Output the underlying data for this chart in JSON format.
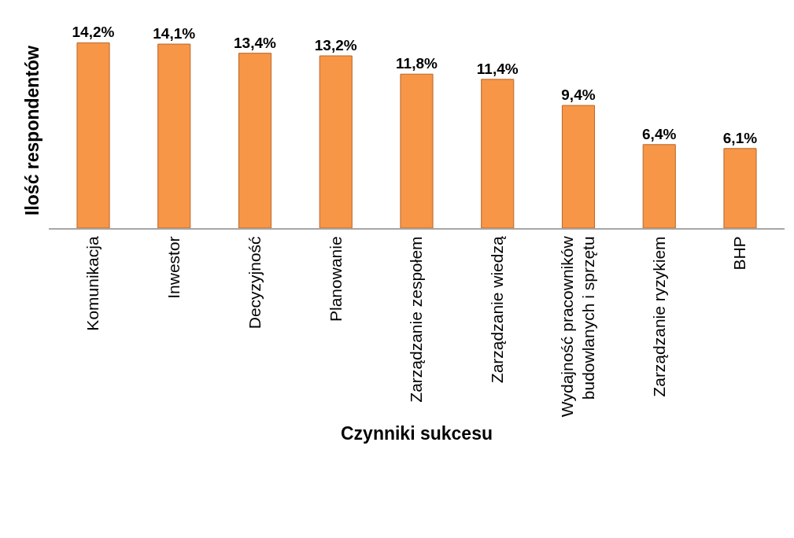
{
  "chart_data": {
    "type": "bar",
    "xlabel": "Czynniki sukcesu",
    "ylabel": "Ilość respondentów",
    "categories": [
      "Komunikacja",
      "Inwestor",
      "Decyzyjność",
      "Planowanie",
      "Zarządzanie zespołem",
      "Zarządzanie wiedzą",
      "Wydajność pracowników budowlanych i sprzętu",
      "Zarządzanie ryzykiem",
      "BHP"
    ],
    "values": [
      14.2,
      14.1,
      13.4,
      13.2,
      11.8,
      11.4,
      9.4,
      6.4,
      6.1
    ],
    "value_labels": [
      "14,2%",
      "14,1%",
      "13,4%",
      "13,2%",
      "11,8%",
      "11,4%",
      "9,4%",
      "6,4%",
      "6,1%"
    ],
    "color": "#f79646"
  }
}
